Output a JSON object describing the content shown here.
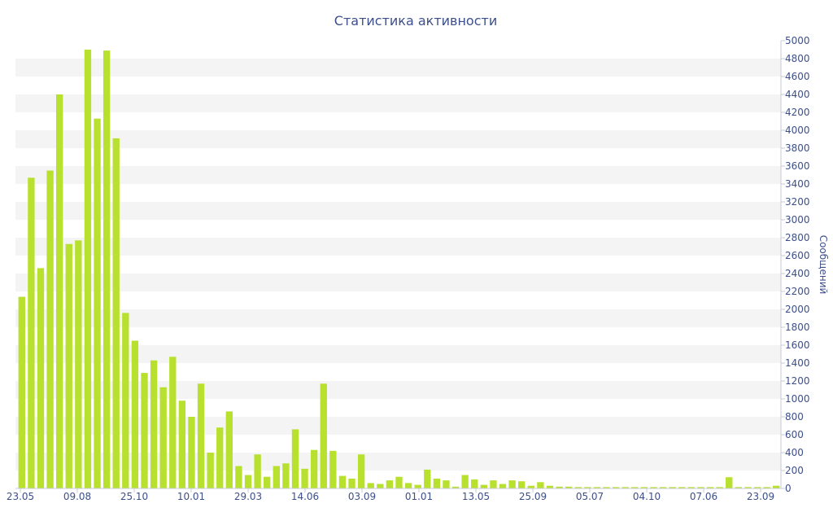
{
  "chart_data": {
    "type": "bar",
    "title": "Статистика активности",
    "ylabel": "Сообщений",
    "ylim": [
      0,
      5000
    ],
    "y_ticks": [
      0,
      200,
      400,
      600,
      800,
      1000,
      1200,
      1400,
      1600,
      1800,
      2000,
      2200,
      2400,
      2600,
      2800,
      3000,
      3200,
      3400,
      3600,
      3800,
      4000,
      4200,
      4400,
      4600,
      4800,
      5000
    ],
    "x_ticks": [
      "23.05",
      "09.08",
      "25.10",
      "10.01",
      "29.03",
      "14.06",
      "03.09",
      "01.01",
      "13.05",
      "25.09",
      "05.07",
      "04.10",
      "07.06",
      "23.09"
    ],
    "y_axis_side": "right",
    "grid": "alternating horizontal bands",
    "bar_color": "#b8e02e",
    "values": [
      2140,
      3470,
      2460,
      3550,
      4400,
      2730,
      2770,
      4900,
      4130,
      4890,
      3910,
      1960,
      1650,
      1290,
      1430,
      1130,
      1470,
      980,
      800,
      1170,
      400,
      680,
      860,
      250,
      150,
      380,
      130,
      250,
      280,
      660,
      220,
      430,
      1170,
      420,
      140,
      110,
      380,
      60,
      50,
      90,
      130,
      60,
      40,
      210,
      110,
      90,
      20,
      150,
      100,
      40,
      90,
      50,
      90,
      80,
      30,
      70,
      30,
      20,
      20,
      15,
      15,
      15,
      15,
      15,
      15,
      15,
      15,
      15,
      15,
      15,
      15,
      15,
      15,
      15,
      15,
      125,
      15,
      15,
      15,
      15,
      30
    ]
  }
}
